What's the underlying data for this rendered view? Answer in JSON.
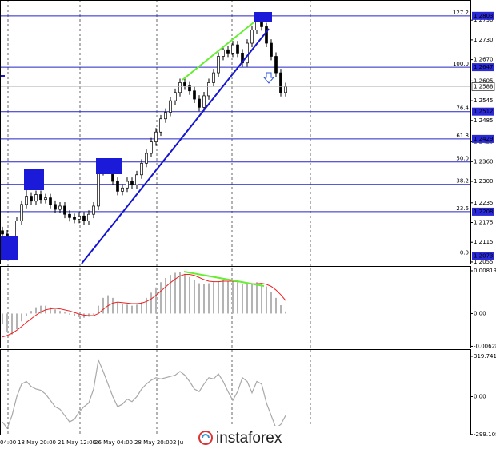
{
  "chart_data": [
    {
      "type": "candlestick",
      "ylim": [
        1.205,
        1.2839
      ],
      "yticks": [
        {
          "value": 1.279,
          "label": "1.2790"
        },
        {
          "value": 1.273,
          "label": "1.2730"
        },
        {
          "value": 1.267,
          "label": "1.2670"
        },
        1.2605,
        1.2545,
        1.2485,
        {
          "value": 1.242,
          "label": "1.2420"
        },
        {
          "value": 1.236,
          "label": "1.2360"
        },
        {
          "value": 1.23,
          "label": "1.2300"
        },
        1.2235,
        1.2175,
        1.2115,
        1.2055
      ],
      "open": [
        1.215,
        1.214,
        1.209,
        1.211,
        1.218,
        1.223,
        1.2255,
        1.224,
        1.226,
        1.2245,
        1.225,
        1.223,
        1.2215,
        1.2225,
        1.22,
        1.219,
        1.2185,
        1.2195,
        1.218,
        1.22,
        1.2225,
        1.233,
        1.2345,
        1.2335,
        1.23,
        1.227,
        1.228,
        1.23,
        1.229,
        1.232,
        1.2355,
        1.2385,
        1.242,
        1.245,
        1.249,
        1.251,
        1.2545,
        1.257,
        1.26,
        1.259,
        1.2575,
        1.255,
        1.2525,
        1.256,
        1.26,
        1.263,
        1.268,
        1.27,
        1.269,
        1.2715,
        1.269,
        1.266,
        1.272,
        1.276,
        1.279,
        1.277,
        1.272,
        1.268,
        1.263,
        1.257
      ],
      "high": [
        1.2162,
        1.2152,
        1.2122,
        1.2192,
        1.2242,
        1.2275,
        1.2267,
        1.2272,
        1.2272,
        1.2262,
        1.2262,
        1.2242,
        1.2237,
        1.2237,
        1.2212,
        1.2202,
        1.2207,
        1.2207,
        1.2212,
        1.2237,
        1.2342,
        1.237,
        1.2357,
        1.2347,
        1.2312,
        1.2292,
        1.2312,
        1.2312,
        1.2332,
        1.2367,
        1.2397,
        1.2432,
        1.2462,
        1.2502,
        1.2522,
        1.2557,
        1.2582,
        1.2612,
        1.2612,
        1.2602,
        1.2587,
        1.2562,
        1.2572,
        1.2612,
        1.2642,
        1.2692,
        1.2712,
        1.2712,
        1.2727,
        1.2727,
        1.2702,
        1.2732,
        1.2772,
        1.2803,
        1.2802,
        1.2782,
        1.2732,
        1.2692,
        1.2642,
        1.26
      ],
      "low": [
        1.2128,
        1.2073,
        1.2078,
        1.2098,
        1.2168,
        1.2218,
        1.2228,
        1.2228,
        1.2233,
        1.2233,
        1.2218,
        1.2203,
        1.2203,
        1.2188,
        1.2178,
        1.2173,
        1.2173,
        1.2168,
        1.2168,
        1.2188,
        1.2213,
        1.2318,
        1.2323,
        1.2288,
        1.2258,
        1.2258,
        1.2268,
        1.2278,
        1.2278,
        1.2308,
        1.2343,
        1.2373,
        1.2408,
        1.2438,
        1.2478,
        1.2498,
        1.2533,
        1.2558,
        1.2578,
        1.2563,
        1.2538,
        1.2513,
        1.2513,
        1.2548,
        1.2588,
        1.2618,
        1.2668,
        1.2678,
        1.2678,
        1.2678,
        1.2648,
        1.2648,
        1.2708,
        1.2748,
        1.2758,
        1.2708,
        1.2668,
        1.2618,
        1.2558,
        1.2558
      ],
      "close": [
        1.214,
        1.209,
        1.211,
        1.218,
        1.223,
        1.2255,
        1.224,
        1.226,
        1.2245,
        1.225,
        1.223,
        1.2215,
        1.2225,
        1.22,
        1.219,
        1.2185,
        1.2195,
        1.218,
        1.22,
        1.2225,
        1.233,
        1.2345,
        1.2335,
        1.23,
        1.227,
        1.228,
        1.23,
        1.229,
        1.232,
        1.2355,
        1.2385,
        1.242,
        1.245,
        1.249,
        1.251,
        1.2545,
        1.257,
        1.26,
        1.259,
        1.2575,
        1.255,
        1.2525,
        1.256,
        1.26,
        1.263,
        1.268,
        1.27,
        1.269,
        1.2715,
        1.269,
        1.266,
        1.272,
        1.276,
        1.279,
        1.277,
        1.272,
        1.268,
        1.263,
        1.257,
        1.2588
      ],
      "color": "#000000",
      "levels": [
        {
          "label": "127.2",
          "price": 1.2803
        },
        {
          "label": "100.0",
          "price": 1.2647
        },
        {
          "label": "76.4",
          "price": 1.2512
        },
        {
          "label": "61.8",
          "price": 1.2429
        },
        {
          "label": "50.0",
          "price": 1.2359
        },
        {
          "label": "38.2",
          "price": 1.2291
        },
        {
          "label": "23.6",
          "price": 1.2208
        },
        {
          "label": "0.0",
          "price": 1.2073
        }
      ],
      "level_color": "#2424c8",
      "price_tags": [
        1.2803,
        1.2647,
        1.2588,
        1.2512,
        1.2429,
        1.2208,
        1.2073
      ],
      "tag_color": "#2a2ad8",
      "x_labels": [
        "04:00",
        "18 May 20:00",
        "21 May 12:00",
        "26 May 04:00",
        "28 May 20:00",
        "2 Ju"
      ]
    },
    {
      "type": "macd",
      "ylim": [
        -0.00667,
        0.00895
      ],
      "yticks": [
        0.00819,
        {
          "value": 0,
          "label": "0.00"
        },
        -0.00628
      ],
      "histogram": [
        -0.002,
        -0.0035,
        -0.004,
        -0.003,
        -0.0015,
        -0.0005,
        0.0005,
        0.0012,
        0.0015,
        0.0015,
        0.0012,
        0.0008,
        0.0005,
        0.0002,
        -0.0002,
        -0.0005,
        -0.0007,
        -0.0008,
        -0.0006,
        -0.0002,
        0.0015,
        0.003,
        0.0035,
        0.003,
        0.0022,
        0.0018,
        0.0017,
        0.0015,
        0.0017,
        0.0022,
        0.003,
        0.004,
        0.005,
        0.006,
        0.0068,
        0.0074,
        0.0078,
        0.008,
        0.0076,
        0.007,
        0.0064,
        0.0058,
        0.0056,
        0.0058,
        0.006,
        0.0062,
        0.0064,
        0.0062,
        0.0062,
        0.006,
        0.0056,
        0.0056,
        0.0058,
        0.006,
        0.0058,
        0.0052,
        0.0042,
        0.003,
        0.0016,
        0.0004
      ],
      "signal": [
        -0.0045,
        -0.0042,
        -0.0038,
        -0.0032,
        -0.0025,
        -0.0017,
        -0.001,
        -0.0003,
        0.0003,
        0.0007,
        0.0009,
        0.001,
        0.0009,
        0.0007,
        0.0005,
        0.0002,
        -0.0001,
        -0.0003,
        -0.0004,
        -0.0004,
        0.0,
        0.0008,
        0.0015,
        0.002,
        0.0022,
        0.0021,
        0.002,
        0.0019,
        0.0019,
        0.002,
        0.0023,
        0.0028,
        0.0035,
        0.0043,
        0.0051,
        0.0059,
        0.0066,
        0.0072,
        0.0075,
        0.0075,
        0.0073,
        0.0069,
        0.0065,
        0.0062,
        0.0061,
        0.0061,
        0.0062,
        0.0062,
        0.0062,
        0.0061,
        0.006,
        0.0058,
        0.0057,
        0.0057,
        0.0058,
        0.0056,
        0.0052,
        0.0045,
        0.0036,
        0.0025
      ],
      "histogram_color": "#b4b4b4",
      "signal_color": "#ee2222"
    },
    {
      "type": "line",
      "ylim": [
        -307,
        370
      ],
      "yticks": [
        319.7413,
        {
          "value": 0,
          "label": "0.00"
        },
        -299.108
      ],
      "values": [
        -200,
        -250,
        -150,
        0,
        100,
        120,
        80,
        60,
        50,
        20,
        -30,
        -80,
        -100,
        -150,
        -200,
        -180,
        -120,
        -80,
        -50,
        60,
        290,
        200,
        100,
        0,
        -80,
        -60,
        -20,
        -40,
        0,
        60,
        100,
        130,
        150,
        140,
        150,
        160,
        170,
        200,
        170,
        120,
        60,
        40,
        100,
        150,
        140,
        180,
        120,
        40,
        -30,
        40,
        150,
        120,
        30,
        120,
        100,
        -50,
        -150,
        -250,
        -220,
        -150
      ],
      "color": "#a8a8a8"
    }
  ],
  "watermark": "instaforex"
}
